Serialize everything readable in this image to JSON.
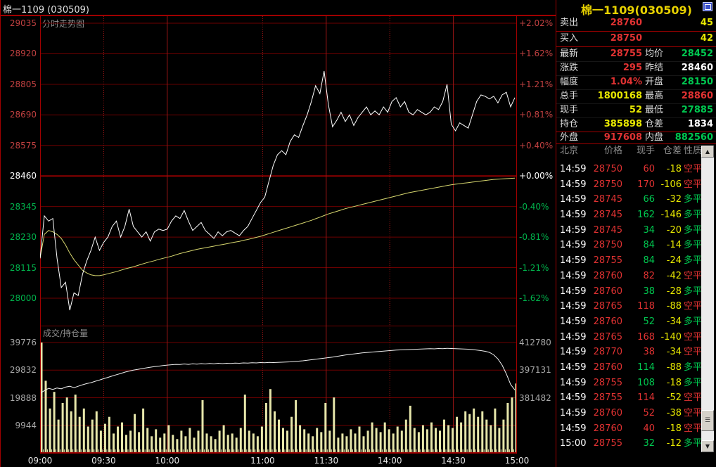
{
  "window": {
    "title": "棉一1109 (030509)"
  },
  "colors": {
    "red": "#e13232",
    "green": "#00c850",
    "yellow": "#e8e800",
    "white": "#ffffff",
    "axis_red": "#c04040",
    "axis_green": "#00b44c",
    "grid": "#6e0000",
    "grid_bright": "#a80000",
    "vline": "#9c1414",
    "sep": "#a00000",
    "price_line": "#ffffff",
    "avg_line": "#d6d66e",
    "bar": "#e6e6aa",
    "oi_line": "#f0f0f0",
    "title_yellow": "#e8d200"
  },
  "chart_data": [
    {
      "type": "line",
      "title": "分时走势图",
      "ylabel_left_ticks": [
        29035,
        28920,
        28805,
        28690,
        28575,
        28460,
        28345,
        28230,
        28115,
        28000
      ],
      "ylabel_right_ticks": [
        "+2.02%",
        "+1.62%",
        "+1.21%",
        "+0.81%",
        "+0.40%",
        "+0.00%",
        "-0.40%",
        "-0.81%",
        "-1.21%",
        "-1.62%"
      ],
      "baseline_price": 28460,
      "ylim": [
        27896,
        29061
      ],
      "x_total_minutes": 225,
      "x_ticks": {
        "labels": [
          "09:00",
          "09:30",
          "10:00",
          "11:00",
          "11:30",
          "14:00",
          "14:30",
          "15:00"
        ],
        "minutes": [
          0,
          30,
          60,
          105,
          135,
          165,
          195,
          225
        ]
      },
      "grid_vertical_solid_minutes": [
        60,
        135,
        195
      ],
      "grid_vertical_dotted_minutes": [
        30,
        105,
        165
      ],
      "sample_step_minutes": 2,
      "series": [
        {
          "name": "price",
          "values": [
            28150,
            28310,
            28290,
            28300,
            28150,
            28040,
            28060,
            27955,
            28020,
            28010,
            28090,
            28140,
            28180,
            28230,
            28180,
            28210,
            28230,
            28270,
            28290,
            28230,
            28270,
            28335,
            28270,
            28250,
            28230,
            28250,
            28215,
            28250,
            28260,
            28255,
            28260,
            28290,
            28310,
            28300,
            28330,
            28290,
            28255,
            28270,
            28285,
            28255,
            28240,
            28225,
            28250,
            28235,
            28250,
            28255,
            28245,
            28235,
            28255,
            28270,
            28300,
            28330,
            28360,
            28380,
            28440,
            28500,
            28540,
            28555,
            28540,
            28590,
            28615,
            28605,
            28650,
            28690,
            28740,
            28800,
            28770,
            28855,
            28730,
            28645,
            28670,
            28700,
            28665,
            28690,
            28650,
            28680,
            28700,
            28720,
            28690,
            28705,
            28690,
            28720,
            28700,
            28740,
            28755,
            28720,
            28740,
            28700,
            28690,
            28710,
            28700,
            28690,
            28700,
            28720,
            28710,
            28740,
            28805,
            28655,
            28630,
            28660,
            28650,
            28640,
            28690,
            28740,
            28765,
            28760,
            28750,
            28760,
            28735,
            28765,
            28775,
            28720,
            28755
          ]
        },
        {
          "name": "average",
          "values": [
            28150,
            28240,
            28255,
            28250,
            28240,
            28225,
            28200,
            28170,
            28145,
            28125,
            28105,
            28095,
            28088,
            28085,
            28085,
            28088,
            28092,
            28096,
            28100,
            28105,
            28110,
            28114,
            28118,
            28123,
            28128,
            28133,
            28137,
            28141,
            28146,
            28150,
            28154,
            28158,
            28163,
            28168,
            28172,
            28176,
            28180,
            28184,
            28187,
            28190,
            28193,
            28196,
            28199,
            28202,
            28205,
            28208,
            28211,
            28214,
            28218,
            28221,
            28225,
            28229,
            28233,
            28238,
            28243,
            28248,
            28253,
            28258,
            28263,
            28268,
            28273,
            28278,
            28283,
            28288,
            28293,
            28299,
            28305,
            28311,
            28317,
            28322,
            28327,
            28332,
            28337,
            28341,
            28345,
            28349,
            28353,
            28357,
            28361,
            28365,
            28369,
            28373,
            28377,
            28381,
            28385,
            28389,
            28393,
            28397,
            28400,
            28403,
            28406,
            28409,
            28412,
            28415,
            28418,
            28421,
            28424,
            28427,
            28429,
            28431,
            28433,
            28435,
            28437,
            28439,
            28441,
            28443,
            28445,
            28447,
            28448,
            28449,
            28450,
            28451,
            28452
          ]
        }
      ]
    },
    {
      "type": "bar",
      "title": "成交/持仓量",
      "ylabel_left_ticks": [
        39776,
        29832,
        19888,
        9944
      ],
      "ylabel_right_ticks": [
        412780,
        397131,
        381482
      ],
      "sample_step_minutes": 2,
      "bars": {
        "name": "volume",
        "values": [
          39776,
          26000,
          16000,
          22000,
          12000,
          18000,
          20000,
          15000,
          21000,
          13000,
          16000,
          9500,
          12000,
          15000,
          8000,
          10500,
          13000,
          7000,
          9500,
          11000,
          6500,
          8000,
          14000,
          7500,
          16000,
          9000,
          6000,
          8500,
          5500,
          7000,
          10000,
          6500,
          5000,
          8000,
          6000,
          9000,
          5500,
          8000,
          19000,
          7000,
          6000,
          5000,
          8000,
          10000,
          6500,
          7000,
          5500,
          9000,
          21000,
          8000,
          7000,
          6000,
          9500,
          18000,
          23000,
          15000,
          12000,
          9000,
          8000,
          13000,
          19000,
          10000,
          8500,
          7000,
          6000,
          9000,
          7500,
          18000,
          8000,
          20000,
          5500,
          7000,
          6000,
          8500,
          7000,
          9500,
          6000,
          8000,
          11000,
          9000,
          7500,
          11000,
          8500,
          7000,
          9500,
          8000,
          12000,
          17000,
          9000,
          7500,
          10000,
          8500,
          11000,
          9000,
          8000,
          12000,
          10000,
          9000,
          13000,
          11000,
          15000,
          14000,
          16000,
          13000,
          15000,
          12000,
          10000,
          16000,
          9000,
          12000,
          18000,
          20000,
          25000
        ]
      },
      "line": {
        "name": "open_interest",
        "values": [
          384000,
          385500,
          386800,
          386200,
          387000,
          386500,
          387500,
          388000,
          387200,
          388000,
          388800,
          389500,
          390000,
          390800,
          391500,
          392300,
          393000,
          393800,
          394500,
          395200,
          396000,
          396600,
          397100,
          397500,
          398000,
          398400,
          398800,
          399100,
          399400,
          399700,
          400000,
          400200,
          400400,
          400300,
          400600,
          400400,
          400700,
          400500,
          400800,
          400600,
          400900,
          400700,
          401000,
          400800,
          401000,
          400900,
          401100,
          401000,
          401200,
          401100,
          401300,
          401200,
          401400,
          401300,
          401500,
          401400,
          401500,
          401600,
          401700,
          401800,
          402000,
          402200,
          402400,
          402700,
          403000,
          403300,
          403600,
          403900,
          404200,
          404500,
          404900,
          405300,
          405700,
          406000,
          406300,
          406600,
          406900,
          407100,
          407300,
          407500,
          407700,
          407900,
          408100,
          408300,
          408500,
          408600,
          408700,
          408800,
          408900,
          409000,
          409100,
          409200,
          409300,
          409200,
          409400,
          409300,
          409500,
          409400,
          409300,
          409200,
          409100,
          409000,
          408800,
          408500,
          408200,
          407800,
          407200,
          405800,
          403500,
          400000,
          395000,
          389000,
          385898
        ]
      }
    }
  ],
  "quote_panel": {
    "title": "棉一1109(030509)",
    "bid_ask": [
      {
        "label": "卖出",
        "price": "28760",
        "price_color": "red",
        "qty": "45",
        "qty_color": "yellow"
      },
      {
        "label": "买入",
        "price": "28750",
        "price_color": "red",
        "qty": "42",
        "qty_color": "yellow"
      }
    ],
    "stats": [
      {
        "label1": "最新",
        "value1": "28755",
        "color1": "red",
        "label2": "均价",
        "value2": "28452",
        "color2": "green"
      },
      {
        "label1": "涨跌",
        "value1": "295",
        "color1": "red",
        "label2": "昨结",
        "value2": "28460",
        "color2": "white"
      },
      {
        "label1": "幅度",
        "value1": "1.04%",
        "color1": "red",
        "label2": "开盘",
        "value2": "28150",
        "color2": "green"
      },
      {
        "label1": "总手",
        "value1": "1800168",
        "color1": "yellow",
        "label2": "最高",
        "value2": "28860",
        "color2": "red"
      },
      {
        "label1": "现手",
        "value1": "52",
        "color1": "yellow",
        "label2": "最低",
        "value2": "27885",
        "color2": "green"
      },
      {
        "label1": "持仓",
        "value1": "385898",
        "color1": "yellow",
        "label2": "仓差",
        "value2": "1834",
        "color2": "white"
      }
    ],
    "in_out": {
      "label1": "外盘",
      "value1": "917608",
      "color1": "red",
      "label2": "内盘",
      "value2": "882560",
      "color2": "green"
    },
    "table_header": [
      "北京",
      "价格",
      "现手",
      "仓差",
      "性质"
    ],
    "trades": [
      {
        "time": "14:59",
        "price": "28750",
        "vol": "60",
        "diff": "-18",
        "type": "空平",
        "color": "red"
      },
      {
        "time": "14:59",
        "price": "28750",
        "vol": "170",
        "diff": "-106",
        "type": "空平",
        "color": "red"
      },
      {
        "time": "14:59",
        "price": "28745",
        "vol": "66",
        "diff": "-32",
        "type": "多平",
        "color": "green"
      },
      {
        "time": "14:59",
        "price": "28745",
        "vol": "162",
        "diff": "-146",
        "type": "多平",
        "color": "green"
      },
      {
        "time": "14:59",
        "price": "28745",
        "vol": "34",
        "diff": "-20",
        "type": "多平",
        "color": "green"
      },
      {
        "time": "14:59",
        "price": "28750",
        "vol": "84",
        "diff": "-14",
        "type": "多平",
        "color": "green"
      },
      {
        "time": "14:59",
        "price": "28755",
        "vol": "84",
        "diff": "-24",
        "type": "多平",
        "color": "green"
      },
      {
        "time": "14:59",
        "price": "28760",
        "vol": "82",
        "diff": "-42",
        "type": "空平",
        "color": "red"
      },
      {
        "time": "14:59",
        "price": "28760",
        "vol": "38",
        "diff": "-28",
        "type": "多平",
        "color": "green"
      },
      {
        "time": "14:59",
        "price": "28765",
        "vol": "118",
        "diff": "-88",
        "type": "空平",
        "color": "red"
      },
      {
        "time": "14:59",
        "price": "28760",
        "vol": "52",
        "diff": "-34",
        "type": "多平",
        "color": "green"
      },
      {
        "time": "14:59",
        "price": "28765",
        "vol": "168",
        "diff": "-140",
        "type": "空平",
        "color": "red"
      },
      {
        "time": "14:59",
        "price": "28770",
        "vol": "38",
        "diff": "-34",
        "type": "空平",
        "color": "red"
      },
      {
        "time": "14:59",
        "price": "28760",
        "vol": "114",
        "diff": "-88",
        "type": "多平",
        "color": "green"
      },
      {
        "time": "14:59",
        "price": "28755",
        "vol": "108",
        "diff": "-18",
        "type": "多平",
        "color": "green"
      },
      {
        "time": "14:59",
        "price": "28755",
        "vol": "114",
        "diff": "-52",
        "type": "空平",
        "color": "red"
      },
      {
        "time": "14:59",
        "price": "28760",
        "vol": "52",
        "diff": "-38",
        "type": "空平",
        "color": "red"
      },
      {
        "time": "14:59",
        "price": "28760",
        "vol": "40",
        "diff": "-18",
        "type": "空平",
        "color": "red"
      },
      {
        "time": "15:00",
        "price": "28755",
        "vol": "32",
        "diff": "-12",
        "type": "多平",
        "color": "green"
      }
    ]
  }
}
